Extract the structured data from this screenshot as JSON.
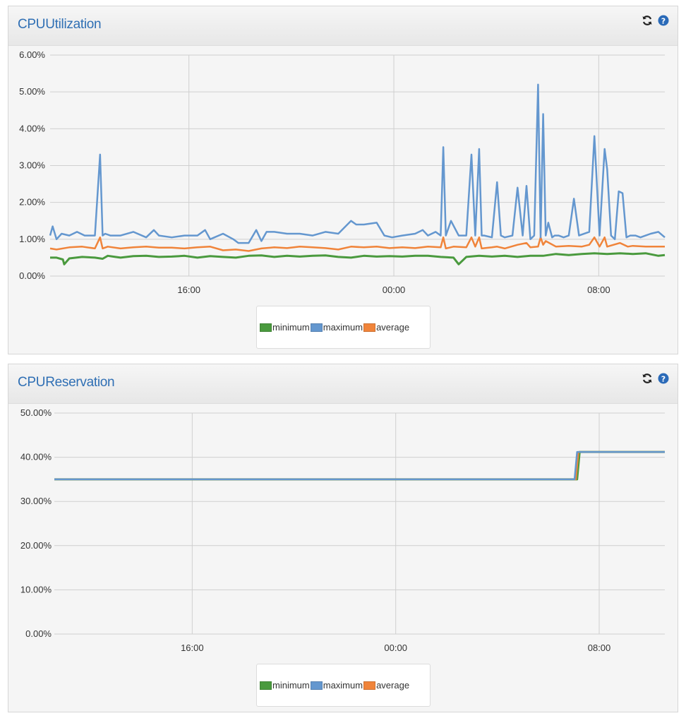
{
  "panels": [
    {
      "title": "CPUUtilization"
    },
    {
      "title": "CPUReservation"
    }
  ],
  "icons": {
    "refresh": "refresh-icon",
    "help": "question-circle-icon"
  },
  "colors": {
    "minimum": "#4a9a3e",
    "maximum": "#6497cf",
    "average": "#f0843a",
    "title": "#2f6fb4"
  },
  "chart_data": [
    {
      "type": "line",
      "title": "CPUUtilization",
      "xlabel": "",
      "ylabel": "",
      "ylim": [
        0,
        6
      ],
      "yticks": [
        "6.00%",
        "5.00%",
        "4.00%",
        "3.00%",
        "2.00%",
        "1.00%",
        "0.00%"
      ],
      "yticks_values": [
        6,
        5,
        4,
        3,
        2,
        1,
        0
      ],
      "xlim": [
        9.25,
        33.25
      ],
      "xticks": [
        "16:00",
        "00:00",
        "08:00"
      ],
      "xticks_values": [
        14.67,
        22.67,
        30.67
      ],
      "grid": true,
      "legend_position": "bottom-center",
      "series": [
        {
          "name": "minimum",
          "color": "#4a9a3e",
          "x": [
            9.25,
            9.5,
            9.75,
            9.8,
            10.0,
            10.5,
            11.0,
            11.3,
            11.5,
            11.8,
            12.0,
            12.5,
            13.0,
            13.5,
            14.0,
            14.5,
            15.0,
            15.5,
            16.0,
            16.5,
            17.0,
            17.5,
            18.0,
            18.5,
            19.0,
            19.5,
            20.0,
            20.5,
            21.0,
            21.5,
            22.0,
            22.5,
            23.0,
            23.5,
            24.0,
            24.5,
            25.0,
            25.2,
            25.5,
            26.0,
            26.5,
            27.0,
            27.5,
            28.0,
            28.5,
            29.0,
            29.5,
            30.0,
            30.5,
            31.0,
            31.5,
            32.0,
            32.5,
            33.0,
            33.25
          ],
          "values": [
            0.5,
            0.5,
            0.45,
            0.32,
            0.48,
            0.52,
            0.5,
            0.47,
            0.55,
            0.52,
            0.5,
            0.54,
            0.55,
            0.52,
            0.53,
            0.55,
            0.5,
            0.54,
            0.52,
            0.5,
            0.55,
            0.56,
            0.52,
            0.55,
            0.53,
            0.55,
            0.56,
            0.52,
            0.5,
            0.55,
            0.53,
            0.54,
            0.53,
            0.55,
            0.55,
            0.52,
            0.5,
            0.32,
            0.52,
            0.55,
            0.53,
            0.55,
            0.52,
            0.55,
            0.55,
            0.6,
            0.57,
            0.6,
            0.62,
            0.6,
            0.62,
            0.6,
            0.62,
            0.55,
            0.57
          ]
        },
        {
          "name": "maximum",
          "color": "#6497cf",
          "x": [
            9.25,
            9.35,
            9.5,
            9.7,
            10.0,
            10.3,
            10.6,
            11.0,
            11.2,
            11.3,
            11.4,
            11.6,
            12.0,
            12.5,
            13.0,
            13.3,
            13.5,
            14.0,
            14.5,
            15.0,
            15.3,
            15.5,
            16.0,
            16.4,
            16.6,
            17.0,
            17.3,
            17.5,
            17.7,
            18.0,
            18.5,
            19.0,
            19.5,
            20.0,
            20.5,
            21.0,
            21.2,
            21.5,
            22.0,
            22.3,
            22.6,
            23.0,
            23.5,
            23.8,
            24.0,
            24.3,
            24.5,
            24.6,
            24.7,
            24.9,
            25.2,
            25.5,
            25.7,
            25.85,
            26.0,
            26.1,
            26.2,
            26.5,
            26.7,
            26.85,
            27.0,
            27.3,
            27.5,
            27.7,
            27.85,
            28.0,
            28.15,
            28.3,
            28.4,
            28.5,
            28.6,
            28.7,
            28.85,
            28.95,
            29.1,
            29.3,
            29.5,
            29.7,
            29.9,
            30.3,
            30.5,
            30.7,
            30.9,
            31.0,
            31.15,
            31.3,
            31.45,
            31.6,
            31.75,
            31.9,
            32.1,
            32.3,
            32.5,
            32.7,
            33.0,
            33.25
          ],
          "values": [
            1.1,
            1.35,
            1.0,
            1.15,
            1.1,
            1.2,
            1.1,
            1.1,
            3.3,
            1.1,
            1.15,
            1.1,
            1.1,
            1.2,
            1.05,
            1.25,
            1.1,
            1.05,
            1.1,
            1.1,
            1.25,
            1.0,
            1.15,
            1.0,
            0.9,
            0.9,
            1.25,
            0.95,
            1.2,
            1.2,
            1.15,
            1.15,
            1.1,
            1.2,
            1.15,
            1.5,
            1.4,
            1.4,
            1.45,
            1.1,
            1.05,
            1.1,
            1.15,
            1.25,
            1.1,
            1.2,
            1.1,
            3.5,
            1.1,
            1.5,
            1.1,
            1.1,
            3.3,
            1.1,
            3.45,
            1.1,
            1.1,
            1.05,
            2.55,
            1.1,
            1.05,
            1.1,
            2.4,
            1.1,
            2.45,
            1.0,
            1.1,
            5.2,
            1.05,
            4.4,
            1.1,
            1.45,
            1.05,
            1.1,
            1.1,
            1.05,
            1.1,
            2.1,
            1.1,
            1.2,
            3.8,
            1.1,
            3.45,
            2.9,
            1.1,
            1.0,
            2.3,
            2.25,
            1.05,
            1.1,
            1.1,
            1.05,
            1.1,
            1.15,
            1.2,
            1.05
          ]
        },
        {
          "name": "average",
          "color": "#f0843a",
          "x": [
            9.25,
            9.5,
            10.0,
            10.5,
            11.0,
            11.2,
            11.3,
            11.5,
            12.0,
            12.5,
            13.0,
            13.5,
            14.0,
            14.5,
            15.0,
            15.5,
            16.0,
            16.5,
            17.0,
            17.5,
            18.0,
            18.5,
            19.0,
            19.5,
            20.0,
            20.5,
            21.0,
            21.5,
            22.0,
            22.5,
            23.0,
            23.5,
            24.0,
            24.5,
            24.6,
            24.7,
            25.0,
            25.5,
            25.7,
            25.85,
            26.0,
            26.1,
            26.5,
            26.7,
            27.0,
            27.5,
            27.85,
            28.0,
            28.3,
            28.4,
            28.5,
            28.6,
            29.0,
            29.5,
            30.0,
            30.3,
            30.5,
            30.7,
            30.9,
            31.0,
            31.5,
            31.8,
            32.0,
            32.5,
            33.0,
            33.25
          ],
          "values": [
            0.75,
            0.72,
            0.78,
            0.8,
            0.75,
            1.05,
            0.75,
            0.8,
            0.75,
            0.78,
            0.8,
            0.77,
            0.77,
            0.75,
            0.78,
            0.8,
            0.7,
            0.72,
            0.68,
            0.75,
            0.78,
            0.76,
            0.8,
            0.78,
            0.76,
            0.72,
            0.8,
            0.78,
            0.8,
            0.76,
            0.78,
            0.76,
            0.8,
            0.78,
            1.05,
            0.75,
            0.8,
            0.78,
            1.05,
            0.8,
            1.05,
            0.75,
            0.78,
            0.8,
            0.75,
            0.85,
            0.9,
            0.78,
            0.8,
            1.05,
            0.85,
            0.95,
            0.8,
            0.82,
            0.8,
            0.85,
            1.05,
            0.8,
            1.05,
            0.8,
            0.9,
            0.8,
            0.82,
            0.8,
            0.8,
            0.8
          ]
        }
      ]
    },
    {
      "type": "line",
      "title": "CPUReservation",
      "xlabel": "",
      "ylabel": "",
      "ylim": [
        0,
        50
      ],
      "yticks": [
        "50.00%",
        "40.00%",
        "30.00%",
        "20.00%",
        "10.00%",
        "0.00%"
      ],
      "yticks_values": [
        50,
        40,
        30,
        20,
        10,
        0
      ],
      "xlim": [
        9.25,
        33.25
      ],
      "xticks": [
        "16:00",
        "00:00",
        "08:00"
      ],
      "xticks_values": [
        14.67,
        22.67,
        30.67
      ],
      "grid": true,
      "legend_position": "bottom-center",
      "series": [
        {
          "name": "minimum",
          "color": "#4a9a3e",
          "x": [
            9.25,
            29.8,
            29.9,
            33.25
          ],
          "values": [
            35,
            35,
            41.2,
            41.2
          ]
        },
        {
          "name": "maximum",
          "color": "#6497cf",
          "x": [
            9.25,
            29.7,
            29.8,
            33.25
          ],
          "values": [
            35,
            35,
            41.2,
            41.2
          ]
        },
        {
          "name": "average",
          "color": "#f0843a",
          "x": [
            9.25,
            29.75,
            29.85,
            33.25
          ],
          "values": [
            35,
            35,
            41.2,
            41.2
          ]
        }
      ]
    }
  ]
}
